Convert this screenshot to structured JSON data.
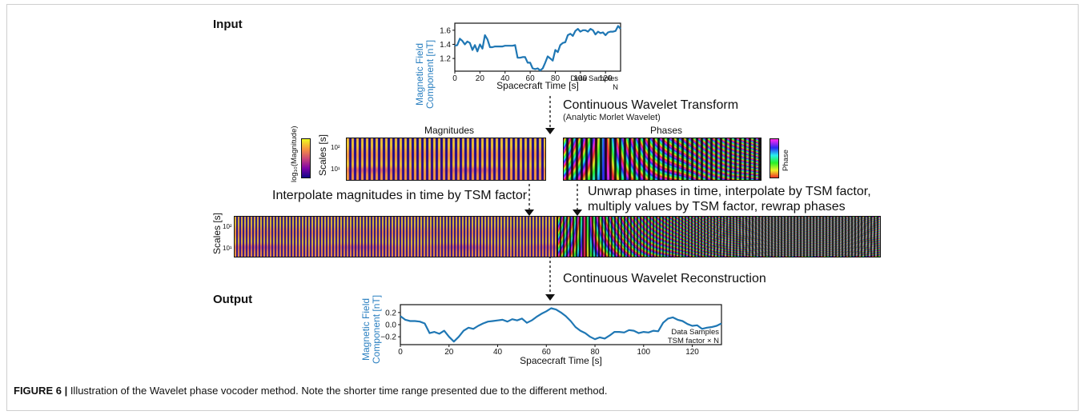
{
  "sections": {
    "input": "Input",
    "output": "Output"
  },
  "steps": {
    "cwt": "Continuous Wavelet Transform",
    "cwt_sub": "(Analytic Morlet Wavelet)",
    "interp_mag": "Interpolate magnitudes in time by TSM factor",
    "unwrap_line1": "Unwrap phases in time, interpolate by TSM factor,",
    "unwrap_line2": "multiply values by TSM factor, rewrap phases",
    "reconstruct": "Continuous Wavelet Reconstruction"
  },
  "panels": {
    "magnitudes_title": "Magnitudes",
    "phases_title": "Phases",
    "scales_label": "Scales [s]",
    "tick_1e2": "10²",
    "tick_1e1": "10¹",
    "colorbar_mag_label": "log₁₀(Magnitude)",
    "colorbar_phase_label": "Phase"
  },
  "colors": {
    "series": "#1f77b4",
    "ylabel": "#2a7fc0"
  },
  "chart_data": [
    {
      "type": "line",
      "ylabel_line1": "Magnetic Field",
      "ylabel_line2": "Component [nT]",
      "xlabel": "Spacecraft Time [s]",
      "annotation_line1": "Data Samples",
      "annotation_line2": "N",
      "xlim": [
        0,
        132
      ],
      "ylim": [
        1.02,
        1.7
      ],
      "xticks": [
        0,
        20,
        40,
        60,
        80,
        100,
        120
      ],
      "yticks": [
        1.2,
        1.4,
        1.6
      ],
      "x": [
        0,
        2,
        4,
        6,
        8,
        10,
        12,
        14,
        16,
        18,
        20,
        22,
        24,
        26,
        28,
        30,
        32,
        34,
        36,
        38,
        40,
        42,
        44,
        46,
        48,
        50,
        52,
        54,
        56,
        58,
        60,
        62,
        64,
        66,
        68,
        70,
        72,
        74,
        76,
        78,
        80,
        82,
        84,
        86,
        88,
        90,
        92,
        94,
        96,
        98,
        100,
        102,
        104,
        106,
        108,
        110,
        112,
        114,
        116,
        118,
        120,
        122,
        124,
        126,
        128,
        130,
        132
      ],
      "y": [
        1.38,
        1.39,
        1.48,
        1.45,
        1.4,
        1.44,
        1.42,
        1.32,
        1.39,
        1.3,
        1.4,
        1.34,
        1.53,
        1.47,
        1.36,
        1.36,
        1.37,
        1.37,
        1.37,
        1.37,
        1.38,
        1.38,
        1.38,
        1.38,
        1.39,
        1.21,
        1.21,
        1.22,
        1.22,
        1.14,
        1.14,
        1.06,
        1.05,
        1.06,
        1.03,
        1.06,
        1.14,
        1.23,
        1.2,
        1.17,
        1.32,
        1.29,
        1.39,
        1.42,
        1.43,
        1.53,
        1.55,
        1.52,
        1.59,
        1.62,
        1.58,
        1.6,
        1.6,
        1.58,
        1.62,
        1.6,
        1.54,
        1.58,
        1.56,
        1.57,
        1.53,
        1.57,
        1.58,
        1.58,
        1.59,
        1.66,
        1.62
      ]
    },
    {
      "type": "line",
      "ylabel_line1": "Magnetic Field",
      "ylabel_line2": "Component [nT]",
      "xlabel": "Spacecraft Time [s]",
      "annotation_line1": "Data Samples",
      "annotation_line2": "TSM factor × N",
      "xlim": [
        0,
        132
      ],
      "ylim": [
        -0.33,
        0.33
      ],
      "xticks": [
        0,
        20,
        40,
        60,
        80,
        100,
        120
      ],
      "yticks": [
        0.2,
        0.0,
        -0.2
      ],
      "ytick_labels": [
        "0.2",
        "0.0",
        "−0.2"
      ],
      "x": [
        0,
        2,
        4,
        6,
        8,
        10,
        12,
        14,
        16,
        18,
        20,
        22,
        24,
        26,
        28,
        30,
        32,
        34,
        36,
        38,
        40,
        42,
        44,
        46,
        48,
        50,
        52,
        54,
        56,
        58,
        60,
        62,
        64,
        66,
        68,
        70,
        72,
        74,
        76,
        78,
        80,
        82,
        84,
        86,
        88,
        90,
        92,
        94,
        96,
        98,
        100,
        102,
        104,
        106,
        108,
        110,
        112,
        114,
        116,
        118,
        120,
        122,
        124,
        126,
        128,
        130,
        132
      ],
      "y": [
        0.14,
        0.08,
        0.06,
        0.06,
        0.05,
        0.02,
        -0.14,
        -0.12,
        -0.15,
        -0.1,
        -0.2,
        -0.28,
        -0.2,
        -0.1,
        -0.05,
        -0.07,
        -0.02,
        0.02,
        0.05,
        0.06,
        0.07,
        0.08,
        0.05,
        0.09,
        0.07,
        0.1,
        0.03,
        0.07,
        0.13,
        0.18,
        0.22,
        0.27,
        0.25,
        0.2,
        0.14,
        0.06,
        -0.04,
        -0.1,
        -0.14,
        -0.2,
        -0.24,
        -0.21,
        -0.23,
        -0.18,
        -0.12,
        -0.12,
        -0.13,
        -0.09,
        -0.1,
        -0.14,
        -0.12,
        -0.13,
        -0.1,
        -0.11,
        0.03,
        0.1,
        0.12,
        0.08,
        0.06,
        0.01,
        -0.02,
        -0.01,
        -0.07,
        -0.05,
        -0.04,
        -0.02,
        0.02
      ]
    }
  ],
  "caption": {
    "label": "FIGURE 6 |",
    "text": " Illustration of the Wavelet phase vocoder method. Note the shorter time range presented due to the different method."
  }
}
